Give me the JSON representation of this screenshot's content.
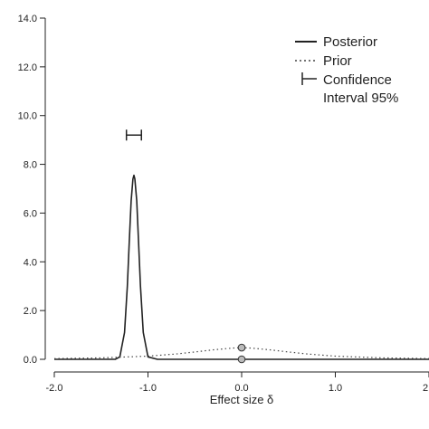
{
  "chart_data": {
    "type": "line",
    "title": "",
    "xlabel": "Effect size δ",
    "ylabel": "",
    "xlim": [
      -2.0,
      2.0
    ],
    "ylim": [
      0.0,
      14.0
    ],
    "x_ticks": [
      "-2.0",
      "-1.0",
      "0.0",
      "1.0",
      "2"
    ],
    "y_ticks": [
      "0.0",
      "2.0",
      "4.0",
      "6.0",
      "8.0",
      "10.0",
      "12.0",
      "14.0"
    ],
    "grid": false,
    "legend_position": "top-right",
    "legend": {
      "posterior": "Posterior",
      "prior": "Prior",
      "ci_line1": "Confidence",
      "ci_line2": "Interval 95%"
    },
    "series": [
      {
        "name": "Posterior",
        "style": "solid",
        "color": "#222222",
        "x": [
          -2.0,
          -1.6,
          -1.35,
          -1.3,
          -1.25,
          -1.22,
          -1.2,
          -1.18,
          -1.16,
          -1.15,
          -1.14,
          -1.12,
          -1.1,
          -1.08,
          -1.05,
          -1.0,
          -0.9,
          -0.5,
          0.0,
          0.5,
          1.0,
          1.5,
          2.0
        ],
        "y": [
          0.0,
          0.0,
          0.0,
          0.1,
          1.1,
          3.0,
          4.8,
          6.5,
          7.4,
          7.55,
          7.4,
          6.5,
          4.8,
          3.0,
          1.1,
          0.1,
          0.0,
          0.0,
          0.0,
          0.0,
          0.0,
          0.0,
          0.0
        ]
      },
      {
        "name": "Prior",
        "style": "dotted",
        "color": "#444444",
        "x": [
          -2.0,
          -1.5,
          -1.0,
          -0.7,
          -0.5,
          -0.3,
          -0.1,
          0.0,
          0.1,
          0.3,
          0.5,
          0.7,
          1.0,
          1.5,
          2.0
        ],
        "y": [
          0.03,
          0.06,
          0.13,
          0.22,
          0.3,
          0.39,
          0.46,
          0.48,
          0.46,
          0.39,
          0.3,
          0.22,
          0.13,
          0.06,
          0.03
        ]
      }
    ],
    "points": [
      {
        "x": 0.0,
        "y": 0.48,
        "fill": "#bbbbbb"
      },
      {
        "x": 0.0,
        "y": 0.0,
        "fill": "#bbbbbb"
      }
    ],
    "ci": {
      "low": -1.23,
      "high": -1.07,
      "y": 9.2
    }
  }
}
